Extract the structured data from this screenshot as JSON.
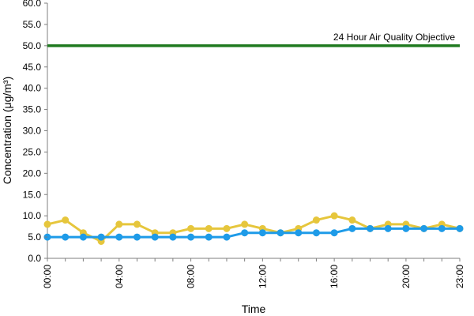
{
  "chart_data": {
    "type": "line",
    "title": "",
    "xlabel": "Time",
    "ylabel": "Concentration (μg/m³)",
    "ylim": [
      0,
      60
    ],
    "y_ticks": [
      "0.0",
      "5.0",
      "10.0",
      "15.0",
      "20.0",
      "25.0",
      "30.0",
      "35.0",
      "40.0",
      "45.0",
      "50.0",
      "55.0",
      "60.0"
    ],
    "x": [
      "00:00",
      "01:00",
      "02:00",
      "03:00",
      "04:00",
      "05:00",
      "06:00",
      "07:00",
      "08:00",
      "09:00",
      "10:00",
      "11:00",
      "12:00",
      "13:00",
      "14:00",
      "15:00",
      "16:00",
      "17:00",
      "18:00",
      "19:00",
      "20:00",
      "21:00",
      "22:00",
      "23:00"
    ],
    "x_tick_labels": [
      "00:00",
      "04:00",
      "08:00",
      "12:00",
      "16:00",
      "20:00",
      "23:00"
    ],
    "series": [
      {
        "color": "#e6c63c",
        "values": [
          8,
          9,
          6,
          4,
          8,
          8,
          6,
          6,
          7,
          7,
          7,
          8,
          7,
          6,
          7,
          9,
          10,
          9,
          7,
          8,
          8,
          7,
          8,
          7
        ]
      },
      {
        "color": "#1e9be8",
        "values": [
          5,
          5,
          5,
          5,
          5,
          5,
          5,
          5,
          5,
          5,
          5,
          6,
          6,
          6,
          6,
          6,
          6,
          7,
          7,
          7,
          7,
          7,
          7,
          7
        ]
      }
    ],
    "reference_line": {
      "value": 50,
      "label": "24 Hour Air Quality Objective",
      "color": "#1f7a1f"
    },
    "grid": false,
    "legend": "none"
  }
}
